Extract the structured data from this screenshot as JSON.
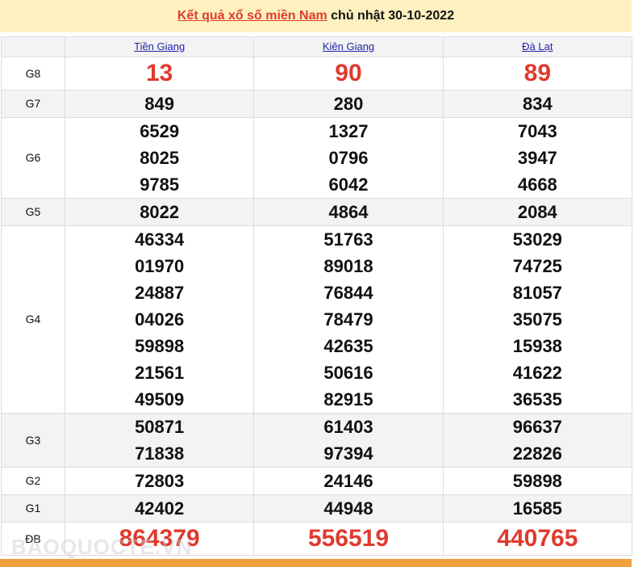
{
  "title": {
    "link": "Kết quả xổ số miền Nam",
    "rest": " chủ nhật 30-10-2022"
  },
  "provinces": [
    "Tiền Giang",
    "Kiên Giang",
    "Đà Lạt"
  ],
  "rows": [
    {
      "label": "G8",
      "values": [
        [
          "13"
        ],
        [
          "90"
        ],
        [
          "89"
        ]
      ]
    },
    {
      "label": "G7",
      "values": [
        [
          "849"
        ],
        [
          "280"
        ],
        [
          "834"
        ]
      ]
    },
    {
      "label": "G6",
      "values": [
        [
          "6529",
          "8025",
          "9785"
        ],
        [
          "1327",
          "0796",
          "6042"
        ],
        [
          "7043",
          "3947",
          "4668"
        ]
      ]
    },
    {
      "label": "G5",
      "values": [
        [
          "8022"
        ],
        [
          "4864"
        ],
        [
          "2084"
        ]
      ]
    },
    {
      "label": "G4",
      "values": [
        [
          "46334",
          "01970",
          "24887",
          "04026",
          "59898",
          "21561",
          "49509"
        ],
        [
          "51763",
          "89018",
          "76844",
          "78479",
          "42635",
          "50616",
          "82915"
        ],
        [
          "53029",
          "74725",
          "81057",
          "35075",
          "15938",
          "41622",
          "36535"
        ]
      ]
    },
    {
      "label": "G3",
      "values": [
        [
          "50871",
          "71838"
        ],
        [
          "61403",
          "97394"
        ],
        [
          "96637",
          "22826"
        ]
      ]
    },
    {
      "label": "G2",
      "values": [
        [
          "72803"
        ],
        [
          "24146"
        ],
        [
          "59898"
        ]
      ]
    },
    {
      "label": "G1",
      "values": [
        [
          "42402"
        ],
        [
          "44948"
        ],
        [
          "16585"
        ]
      ]
    },
    {
      "label": "ĐB",
      "values": [
        [
          "864379"
        ],
        [
          "556519"
        ],
        [
          "440765"
        ]
      ]
    }
  ],
  "watermark": "BAOQUOCTE.VN",
  "colors": {
    "accent": "#e03a2e",
    "header_bg": "#fdf1c0",
    "footer": "#f29f3d"
  }
}
